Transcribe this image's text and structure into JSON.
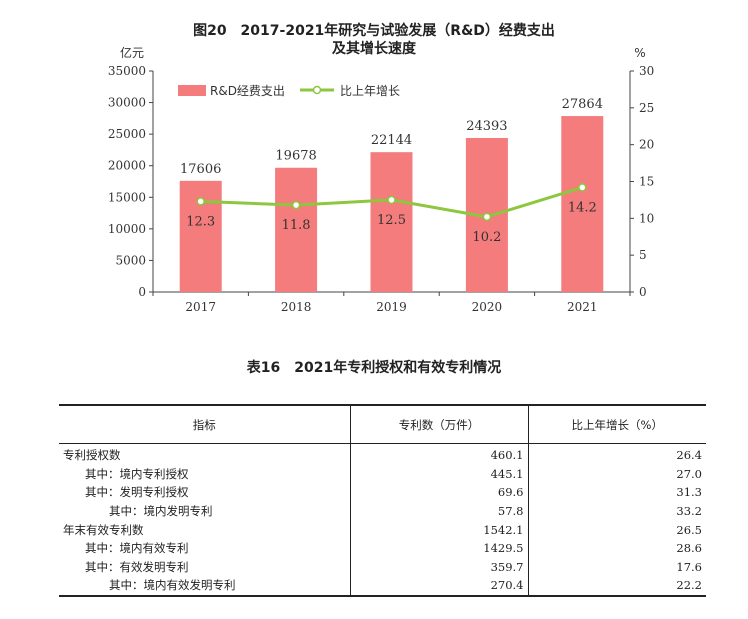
{
  "chart_data": {
    "type": "bar+line",
    "title_line1": "图20　2017-2021年研究与试验发展（R&D）经费支出",
    "title_line2": "及其增长速度",
    "y_left_unit": "亿元",
    "y_right_unit": "%",
    "categories": [
      "2017",
      "2018",
      "2019",
      "2020",
      "2021"
    ],
    "y_left_ticks": [
      "0",
      "5000",
      "10000",
      "15000",
      "20000",
      "25000",
      "30000",
      "35000"
    ],
    "y_right_ticks": [
      "0",
      "5",
      "10",
      "15",
      "20",
      "25",
      "30"
    ],
    "ylim_left": [
      0,
      35000
    ],
    "ylim_right": [
      0,
      30
    ],
    "series": [
      {
        "name": "R&D经费支出",
        "type": "bar",
        "axis": "left",
        "values": [
          17606,
          19678,
          22144,
          24393,
          27864
        ],
        "labels": [
          "17606",
          "19678",
          "22144",
          "24393",
          "27864"
        ]
      },
      {
        "name": "比上年增长",
        "type": "line",
        "axis": "right",
        "values": [
          12.3,
          11.8,
          12.5,
          10.2,
          14.2
        ],
        "labels": [
          "12.3",
          "11.8",
          "12.5",
          "10.2",
          "14.2"
        ]
      }
    ],
    "legend_position": "top-left",
    "colors": {
      "bar": "#F47C7C",
      "line": "#8DC63F"
    }
  },
  "table": {
    "title": "表16　2021年专利授权和有效专利情况",
    "headers": [
      "指标",
      "专利数（万件）",
      "比上年增长（%）"
    ],
    "rows": [
      {
        "name": "专利授权数",
        "value": "460.1",
        "growth": "26.4"
      },
      {
        "name": "其中：境内专利授权",
        "value": "445.1",
        "growth": "27.0"
      },
      {
        "name": "其中：发明专利授权",
        "value": "69.6",
        "growth": "31.3"
      },
      {
        "name": "其中：境内发明专利",
        "value": "57.8",
        "growth": "33.2"
      },
      {
        "name": "年末有效专利数",
        "value": "1542.1",
        "growth": "26.5"
      },
      {
        "name": "其中：境内有效专利",
        "value": "1429.5",
        "growth": "28.6"
      },
      {
        "name": "其中：有效发明专利",
        "value": "359.7",
        "growth": "17.6"
      },
      {
        "name": "其中：境内有效发明专利",
        "value": "270.4",
        "growth": "22.2"
      }
    ]
  }
}
